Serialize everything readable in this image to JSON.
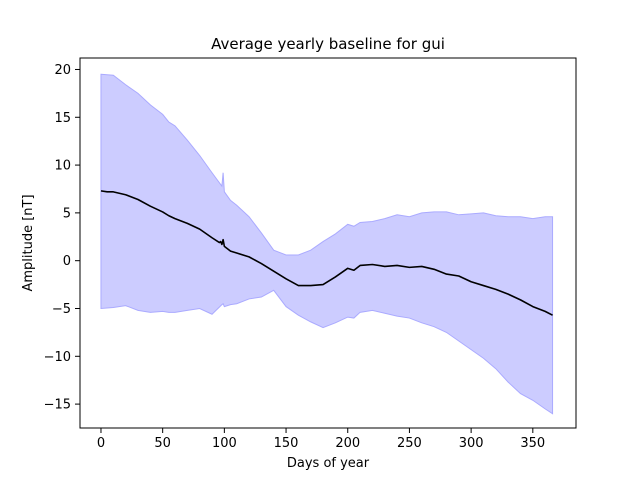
{
  "chart_data": {
    "type": "area",
    "title": "Average yearly baseline for gui",
    "xlabel": "Days of year",
    "ylabel": "Amplitude [nT]",
    "xlim": [
      -17,
      385
    ],
    "ylim": [
      -17.5,
      21.2
    ],
    "x_ticks": [
      0,
      50,
      100,
      150,
      200,
      250,
      300,
      350
    ],
    "y_ticks": [
      -15,
      -10,
      -5,
      0,
      5,
      10,
      15,
      20
    ],
    "grid": false,
    "legend": "none",
    "colors": {
      "mean_line": "#000000",
      "band_fill": "#ccccff",
      "band_edge": "#aaaaff"
    },
    "series": [
      {
        "kind": "band",
        "x": [
          0,
          10,
          20,
          30,
          40,
          50,
          55,
          60,
          70,
          80,
          90,
          98,
          99,
          100,
          105,
          110,
          120,
          130,
          140,
          150,
          160,
          170,
          180,
          190,
          200,
          205,
          210,
          220,
          230,
          240,
          250,
          260,
          270,
          280,
          290,
          300,
          310,
          320,
          330,
          340,
          350,
          360,
          366
        ],
        "upper": [
          19.5,
          19.4,
          18.4,
          17.5,
          16.3,
          15.3,
          14.5,
          14.1,
          12.6,
          11.0,
          9.2,
          7.8,
          9.2,
          7.2,
          6.3,
          5.8,
          4.6,
          2.9,
          1.1,
          0.6,
          0.6,
          1.1,
          2.0,
          2.8,
          3.8,
          3.6,
          4.0,
          4.1,
          4.4,
          4.8,
          4.6,
          5.0,
          5.1,
          5.1,
          4.8,
          4.9,
          5.0,
          4.7,
          4.6,
          4.6,
          4.4,
          4.6,
          4.6
        ],
        "lower": [
          -5.0,
          -4.9,
          -4.7,
          -5.2,
          -5.4,
          -5.3,
          -5.4,
          -5.4,
          -5.2,
          -5.0,
          -5.6,
          -4.6,
          -4.5,
          -4.8,
          -4.6,
          -4.5,
          -4.0,
          -3.8,
          -3.1,
          -4.8,
          -5.7,
          -6.4,
          -7.0,
          -6.5,
          -5.9,
          -6.0,
          -5.4,
          -5.2,
          -5.5,
          -5.8,
          -6.0,
          -6.5,
          -6.9,
          -7.5,
          -8.4,
          -9.3,
          -10.2,
          -11.3,
          -12.7,
          -13.9,
          -14.6,
          -15.5,
          -16.0
        ]
      },
      {
        "kind": "line",
        "x": [
          0,
          5,
          10,
          20,
          30,
          40,
          50,
          55,
          60,
          70,
          80,
          90,
          96,
          97,
          98,
          99,
          100,
          105,
          110,
          120,
          130,
          140,
          150,
          160,
          170,
          180,
          190,
          200,
          205,
          210,
          220,
          230,
          240,
          250,
          260,
          270,
          280,
          290,
          300,
          310,
          320,
          330,
          340,
          350,
          360,
          366
        ],
        "y": [
          7.3,
          7.2,
          7.2,
          6.9,
          6.4,
          5.7,
          5.1,
          4.7,
          4.4,
          3.9,
          3.3,
          2.4,
          1.9,
          2.0,
          1.7,
          2.2,
          1.5,
          1.0,
          0.8,
          0.4,
          -0.3,
          -1.1,
          -1.9,
          -2.6,
          -2.6,
          -2.5,
          -1.7,
          -0.8,
          -1.0,
          -0.5,
          -0.4,
          -0.6,
          -0.5,
          -0.7,
          -0.6,
          -0.9,
          -1.4,
          -1.6,
          -2.2,
          -2.6,
          -3.0,
          -3.5,
          -4.1,
          -4.8,
          -5.3,
          -5.7
        ]
      }
    ]
  }
}
